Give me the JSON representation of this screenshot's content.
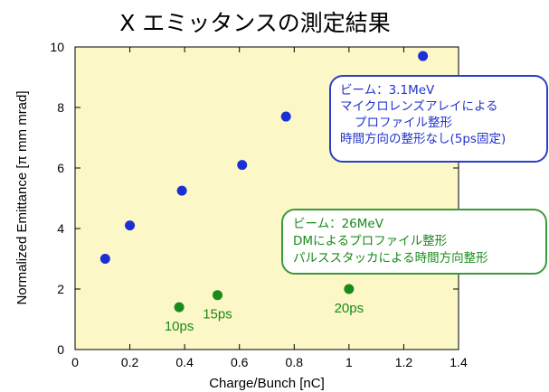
{
  "chart_data": {
    "type": "scatter",
    "title": "X エミッタンスの測定結果",
    "xlabel": "Charge/Bunch [nC]",
    "ylabel": "Normalized Emittance  [π mm mrad]",
    "xlim": [
      0,
      1.4
    ],
    "ylim": [
      0,
      10
    ],
    "x_ticks": [
      "0",
      "0.2",
      "0.4",
      "0.6",
      "0.8",
      "1",
      "1.2",
      "1.4"
    ],
    "y_ticks": [
      "0",
      "2",
      "4",
      "6",
      "8",
      "10"
    ],
    "grid": false,
    "background": "#fbf7c6",
    "series": [
      {
        "color": "#1b2fd6",
        "points": [
          {
            "x": 0.11,
            "y": 3.0
          },
          {
            "x": 0.2,
            "y": 4.1
          },
          {
            "x": 0.39,
            "y": 5.25
          },
          {
            "x": 0.61,
            "y": 6.1
          },
          {
            "x": 0.77,
            "y": 7.7
          },
          {
            "x": 1.27,
            "y": 9.7
          }
        ]
      },
      {
        "color": "#1a8a1a",
        "points": [
          {
            "x": 0.38,
            "y": 1.4,
            "label": "10ps"
          },
          {
            "x": 0.52,
            "y": 1.8,
            "label": "15ps"
          },
          {
            "x": 1.0,
            "y": 2.0,
            "label": "20ps"
          }
        ]
      }
    ],
    "annotations": [
      {
        "color": "#2233cc",
        "lines": [
          "ビーム：3.1MeV",
          "マイクロレンズアレイによる",
          "プロファイル整形",
          "時間方向の整形なし(5ps固定)"
        ]
      },
      {
        "color": "#1a8a1a",
        "lines": [
          "ビーム：26MeV",
          "DMによるプロファイル整形",
          "パルススタッカによる時間方向整形"
        ]
      }
    ]
  }
}
